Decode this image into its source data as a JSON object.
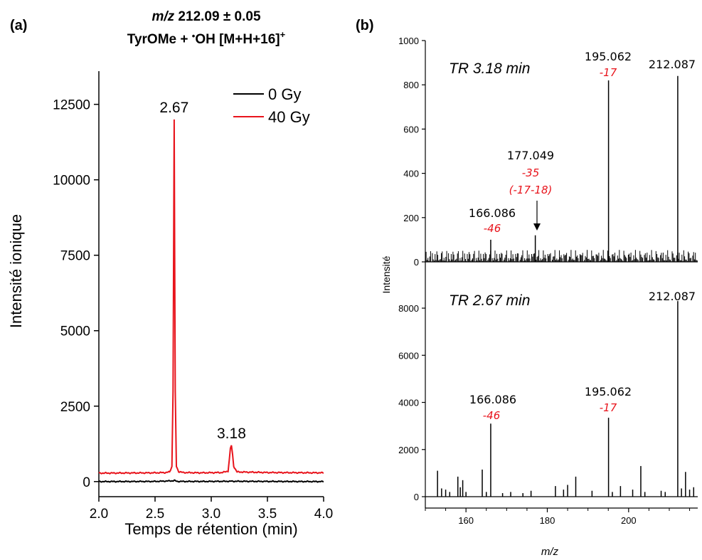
{
  "colors": {
    "axis": "#000000",
    "trace_0gy": "#000000",
    "trace_40gy": "#e8141c",
    "annotation_red": "#e8141c"
  },
  "chart_data": [
    {
      "panel_label": "(a)",
      "type": "line",
      "title_mz": "m/z",
      "title_rest": " 212.09 ± 0.05",
      "subtitle_pre": "TyrOMe + ",
      "subtitle_dot": "•",
      "subtitle_post": "OH [M+H+16]",
      "subtitle_sup": "+",
      "xlabel": "Temps de rétention (min)",
      "ylabel": "Intensité ionique",
      "xlim": [
        2.0,
        4.0
      ],
      "ylim": [
        -500,
        13600
      ],
      "xticks": [
        "2.0",
        "2.5",
        "3.0",
        "3.5",
        "4.0"
      ],
      "xtick_values": [
        2.0,
        2.5,
        3.0,
        3.5,
        4.0
      ],
      "yticks": [
        "0",
        "2500",
        "5000",
        "7500",
        "10000",
        "12500"
      ],
      "ytick_values": [
        0,
        2500,
        5000,
        7500,
        10000,
        12500
      ],
      "grid": false,
      "legend_position": "top-right",
      "series": [
        {
          "name": "0 Gy",
          "baseline": 0,
          "x": [
            2.0,
            2.5,
            2.66,
            2.67,
            2.68,
            2.7,
            3.0,
            3.17,
            3.18,
            3.19,
            3.5,
            4.0
          ],
          "y": [
            0,
            5,
            25,
            40,
            25,
            5,
            5,
            10,
            15,
            10,
            5,
            0
          ]
        },
        {
          "name": "40 Gy",
          "baseline": 280,
          "x": [
            2.0,
            2.5,
            2.6,
            2.63,
            2.65,
            2.66,
            2.67,
            2.68,
            2.69,
            2.71,
            2.75,
            2.9,
            3.1,
            3.15,
            3.16,
            3.17,
            3.18,
            3.19,
            3.2,
            3.23,
            3.5,
            4.0
          ],
          "y": [
            280,
            290,
            300,
            320,
            500,
            3000,
            12000,
            3000,
            500,
            330,
            300,
            290,
            300,
            350,
            700,
            1100,
            1200,
            900,
            500,
            320,
            300,
            290
          ]
        }
      ],
      "annotations": [
        {
          "text": "2.67",
          "x": 2.67,
          "y": 12000
        },
        {
          "text": "3.18",
          "x": 3.18,
          "y": 1200
        }
      ]
    },
    {
      "panel_label": "(b)",
      "type": "bar",
      "ylabel": "Intensité",
      "xlabel": "m/z",
      "xlim": [
        150,
        217
      ],
      "xticks": [
        "160",
        "180",
        "200"
      ],
      "xtick_values": [
        160,
        180,
        200
      ],
      "panels": [
        {
          "title": "TR 3.18 min",
          "ylim": [
            0,
            1000
          ],
          "yticks": [
            "0",
            "200",
            "400",
            "600",
            "800",
            "1000"
          ],
          "ytick_values": [
            0,
            200,
            400,
            600,
            800,
            1000
          ],
          "peaks": [
            {
              "mz": 166.086,
              "intensity": 100
            },
            {
              "mz": 177.049,
              "intensity": 120
            },
            {
              "mz": 195.062,
              "intensity": 820
            },
            {
              "mz": 212.087,
              "intensity": 840
            }
          ],
          "noise_max": 55,
          "labels": [
            {
              "text": "166.086",
              "sub": "-46",
              "sub2": ""
            },
            {
              "text": "177.049",
              "sub": "-35",
              "sub2": "(-17-18)",
              "arrow": true
            },
            {
              "text": "195.062",
              "sub": "-17",
              "sub2": ""
            },
            {
              "text": "212.087",
              "sub": "",
              "sub2": ""
            }
          ]
        },
        {
          "title": "TR 2.67 min",
          "ylim": [
            -300,
            9300
          ],
          "yticks": [
            "0",
            "2000",
            "4000",
            "6000",
            "8000"
          ],
          "ytick_values": [
            0,
            2000,
            4000,
            6000,
            8000
          ],
          "peaks": [
            {
              "mz": 153,
              "intensity": 1100
            },
            {
              "mz": 154,
              "intensity": 350
            },
            {
              "mz": 155,
              "intensity": 300
            },
            {
              "mz": 156,
              "intensity": 200
            },
            {
              "mz": 158,
              "intensity": 850
            },
            {
              "mz": 158.6,
              "intensity": 400
            },
            {
              "mz": 159.2,
              "intensity": 700
            },
            {
              "mz": 160,
              "intensity": 200
            },
            {
              "mz": 164,
              "intensity": 1150
            },
            {
              "mz": 165,
              "intensity": 200
            },
            {
              "mz": 166.086,
              "intensity": 3100
            },
            {
              "mz": 169,
              "intensity": 150
            },
            {
              "mz": 171,
              "intensity": 200
            },
            {
              "mz": 174,
              "intensity": 150
            },
            {
              "mz": 176,
              "intensity": 250
            },
            {
              "mz": 182,
              "intensity": 450
            },
            {
              "mz": 184,
              "intensity": 300
            },
            {
              "mz": 185,
              "intensity": 500
            },
            {
              "mz": 187,
              "intensity": 850
            },
            {
              "mz": 191,
              "intensity": 250
            },
            {
              "mz": 195.062,
              "intensity": 3350
            },
            {
              "mz": 196,
              "intensity": 200
            },
            {
              "mz": 198,
              "intensity": 450
            },
            {
              "mz": 201,
              "intensity": 300
            },
            {
              "mz": 203,
              "intensity": 1300
            },
            {
              "mz": 204,
              "intensity": 200
            },
            {
              "mz": 208,
              "intensity": 250
            },
            {
              "mz": 209,
              "intensity": 200
            },
            {
              "mz": 212.087,
              "intensity": 8300
            },
            {
              "mz": 213,
              "intensity": 350
            },
            {
              "mz": 214,
              "intensity": 1050
            },
            {
              "mz": 215,
              "intensity": 300
            },
            {
              "mz": 216,
              "intensity": 400
            }
          ],
          "labels": [
            {
              "text": "166.086",
              "sub": "-46",
              "sub2": ""
            },
            {
              "text": "195.062",
              "sub": "-17",
              "sub2": ""
            },
            {
              "text": "212.087",
              "sub": "",
              "sub2": ""
            }
          ]
        }
      ]
    }
  ]
}
